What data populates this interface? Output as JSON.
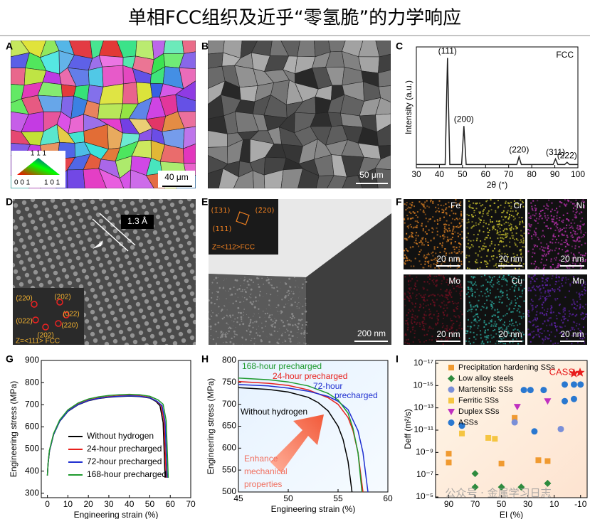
{
  "title": "单相FCC组织及近乎“零氢脆”的力学响应",
  "panel_labels": [
    "A",
    "B",
    "C",
    "D",
    "E",
    "F",
    "G",
    "H",
    "I"
  ],
  "A": {
    "scale_bar": "40 μm",
    "ipf_key": [
      "1 1 1",
      "0 0 1",
      "1 0 1"
    ]
  },
  "B": {
    "scale_bar": "50 μm"
  },
  "D": {
    "spacing": "1.3 Å",
    "fft_spots": [
      "(220)",
      "(202)",
      "(022)",
      "(022)",
      "(220)",
      "(202)"
    ],
    "zone_axis": "Z=<111> FCC"
  },
  "E": {
    "saed_spots": [
      "(1̄31)",
      "(2̄20)",
      "(111)"
    ],
    "zone_axis": "Z=<112>FCC",
    "scale_bar": "200 nm"
  },
  "F": {
    "maps": [
      {
        "element": "Fe",
        "scale_bar": "20 nm",
        "color": "#d07a22"
      },
      {
        "element": "Cr",
        "scale_bar": "20 nm",
        "color": "#bdb62c"
      },
      {
        "element": "Ni",
        "scale_bar": "20 nm",
        "color": "#b22fa8"
      },
      {
        "element": "Mo",
        "scale_bar": "20 nm",
        "color": "#6a1020"
      },
      {
        "element": "Cu",
        "scale_bar": "20 nm",
        "color": "#2aa196"
      },
      {
        "element": "Mn",
        "scale_bar": "20 nm",
        "color": "#5a22a0"
      }
    ]
  },
  "watermark": "公众号 · 金属学习日志",
  "chart_data": [
    {
      "type": "line",
      "xlabel": "2θ (°)",
      "ylabel": "Intensity (a.u.)",
      "legend": "upper right",
      "x": [
        30,
        42.5,
        43.5,
        44.5,
        49.6,
        50.6,
        51.6,
        73.5,
        74.5,
        75.5,
        89.3,
        90.3,
        91.3,
        94.3,
        95.3,
        96.3,
        100
      ],
      "series": [
        {
          "name": "FCC",
          "color": "#222222",
          "values": [
            3,
            3,
            100,
            3,
            3,
            38,
            3,
            3,
            10,
            3,
            3,
            8,
            3,
            3,
            5,
            3,
            3
          ]
        }
      ],
      "annotations": [
        "(111)",
        "(200)",
        "(220)",
        "(311)",
        "(222)"
      ],
      "xlim": [
        30,
        100
      ],
      "xticks": [
        30,
        40,
        50,
        60,
        70,
        80,
        90,
        100
      ],
      "ylim": [
        0,
        110
      ]
    },
    {
      "type": "line",
      "xlabel": "Engineering strain (%)",
      "ylabel": "Engineering stress (MPa)",
      "legend": "lower right",
      "series": [
        {
          "name": "Without hydrogen",
          "color": "#000000",
          "x": [
            0,
            0.3,
            1,
            3,
            6,
            10,
            15,
            20,
            25,
            30,
            35,
            40,
            45,
            50,
            53,
            55,
            56.5,
            57.5
          ],
          "values": [
            380,
            430,
            490,
            565,
            625,
            670,
            700,
            718,
            728,
            734,
            737,
            739,
            737,
            730,
            715,
            695,
            620,
            370
          ]
        },
        {
          "name": "24-hour precharged",
          "color": "#e8201c",
          "x": [
            0,
            0.3,
            1,
            3,
            6,
            10,
            15,
            20,
            25,
            30,
            35,
            40,
            45,
            50,
            53,
            55.5,
            57,
            58
          ],
          "values": [
            380,
            432,
            493,
            568,
            628,
            673,
            703,
            721,
            731,
            737,
            740,
            742,
            740,
            733,
            718,
            698,
            625,
            370
          ]
        },
        {
          "name": "72-hour precharged",
          "color": "#1f2fd0",
          "x": [
            0,
            0.3,
            1,
            3,
            6,
            10,
            15,
            20,
            25,
            30,
            35,
            40,
            45,
            50,
            53.5,
            56,
            57.5,
            58.5
          ],
          "values": [
            380,
            431,
            491,
            566,
            626,
            671,
            701,
            719,
            729,
            735,
            738,
            740,
            738,
            731,
            716,
            696,
            622,
            370
          ]
        },
        {
          "name": "168-hour precharged",
          "color": "#1e9a2e",
          "x": [
            0,
            0.3,
            1,
            3,
            6,
            10,
            15,
            20,
            25,
            30,
            35,
            40,
            45,
            50,
            54,
            56.5,
            58,
            59
          ],
          "values": [
            380,
            434,
            495,
            570,
            631,
            677,
            708,
            726,
            736,
            742,
            745,
            747,
            745,
            738,
            722,
            702,
            628,
            370
          ]
        }
      ],
      "xlim": [
        -3,
        70
      ],
      "xticks": [
        0,
        10,
        20,
        30,
        40,
        50,
        60,
        70
      ],
      "ylim": [
        280,
        900
      ],
      "yticks": [
        300,
        400,
        500,
        600,
        700,
        800,
        900
      ]
    },
    {
      "type": "line",
      "xlabel": "Engineering strain (%)",
      "ylabel": "Engineering stress (MPa)",
      "series": [
        {
          "color": "#000000",
          "x": [
            45,
            48,
            50,
            52,
            53,
            54,
            55,
            55.5,
            56,
            56.4
          ],
          "values": [
            738,
            734,
            728,
            716,
            704,
            685,
            650,
            620,
            570,
            500
          ]
        },
        {
          "color": "#e8201c",
          "x": [
            45,
            48,
            50,
            52,
            54,
            55,
            56,
            56.5,
            57,
            57.5
          ],
          "values": [
            752,
            748,
            743,
            733,
            715,
            700,
            670,
            640,
            590,
            500
          ]
        },
        {
          "color": "#1f2fd0",
          "x": [
            45,
            48,
            50,
            52,
            54,
            55,
            56,
            57,
            57.5,
            58
          ],
          "values": [
            745,
            742,
            737,
            730,
            718,
            707,
            688,
            640,
            590,
            500
          ]
        },
        {
          "color": "#1e9a2e",
          "x": [
            45,
            48,
            50,
            52,
            54,
            55,
            56,
            56.5,
            57,
            57.4
          ],
          "values": [
            760,
            756,
            751,
            742,
            725,
            710,
            680,
            645,
            590,
            500
          ]
        }
      ],
      "annotations": [
        "168-hour precharged",
        "24-hour precharged",
        "72-hour",
        "precharged",
        "Without hydrogen",
        "Enhance",
        "mechanical",
        "properties"
      ],
      "xlim": [
        45,
        60
      ],
      "xticks": [
        45,
        50,
        55,
        60
      ],
      "ylim": [
        500,
        800
      ],
      "yticks": [
        500,
        550,
        600,
        650,
        700,
        750,
        800
      ]
    },
    {
      "type": "scatter",
      "xlabel": "EI (%)",
      "ylabel": "Deff (m²/s)",
      "log_y": true,
      "legend": "upper left",
      "series": [
        {
          "name": "Precipitation hardening SSs",
          "color": "#f09a30",
          "marker": "square",
          "x": [
            90,
            90,
            50,
            40,
            22,
            15
          ],
          "values": [
            1.3e-09,
            8e-09,
            1e-08,
            8e-13,
            5e-09,
            6e-09
          ]
        },
        {
          "name": "Low alloy steels",
          "color": "#2e8b3e",
          "marker": "diamond",
          "x": [
            70,
            70,
            50,
            35,
            15
          ],
          "values": [
            8e-08,
            1.3e-06,
            1.3e-06,
            1.3e-06,
            6e-07
          ]
        },
        {
          "name": "Martensitic SSs",
          "color": "#7a8fd8",
          "marker": "circle",
          "x": [
            40,
            5
          ],
          "values": [
            2e-12,
            8e-12
          ]
        },
        {
          "name": "Ferritic SSs",
          "color": "#f5c542",
          "marker": "square",
          "x": [
            80,
            60,
            55
          ],
          "values": [
            2e-11,
            5e-11,
            6e-11
          ]
        },
        {
          "name": "Duplex SSs",
          "color": "#c030c0",
          "marker": "triangle",
          "x": [
            38,
            15
          ],
          "values": [
            8e-14,
            2.5e-14
          ]
        },
        {
          "name": "ASSs",
          "color": "#2a78d0",
          "marker": "circle",
          "x": [
            80,
            25,
            33,
            28,
            18,
            2,
            -5,
            -10,
            -5,
            2
          ],
          "values": [
            4e-12,
            1.3e-11,
            2.5e-15,
            2.5e-15,
            2.5e-15,
            8e-16,
            8e-16,
            8e-16,
            1.6e-14,
            2.5e-14
          ]
        },
        {
          "name": "CASS",
          "color": "#e81c1c",
          "marker": "star",
          "x": [
            -5
          ],
          "values": [
            8e-17
          ]
        }
      ],
      "xlim": [
        100,
        -15
      ],
      "xticks": [
        90,
        70,
        50,
        30,
        10,
        -10
      ],
      "ylim": [
        1e-05,
        1e-17
      ],
      "yticks": [
        {
          "value": 1e-17,
          "label": "10⁻¹⁷"
        },
        {
          "value": 1e-15,
          "label": "10⁻¹⁵"
        },
        {
          "value": 1e-13,
          "label": "10⁻¹³"
        },
        {
          "value": 1e-11,
          "label": "10⁻¹¹"
        },
        {
          "value": 1e-09,
          "label": "10⁻⁹"
        },
        {
          "value": 1e-07,
          "label": "10⁻⁷"
        },
        {
          "value": 1e-05,
          "label": "10⁻⁵"
        }
      ]
    }
  ]
}
